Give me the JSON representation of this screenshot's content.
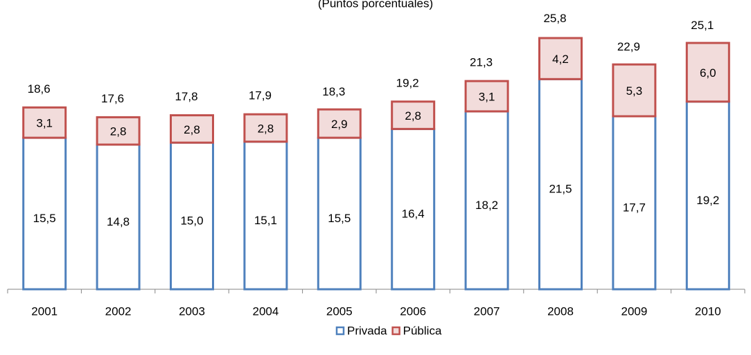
{
  "chart_data": {
    "type": "stacked-bar",
    "subtitle": "(Puntos porcentuales)",
    "categories": [
      "2001",
      "2002",
      "2003",
      "2004",
      "2005",
      "2006",
      "2007",
      "2008",
      "2009",
      "2010"
    ],
    "series": [
      {
        "name": "Privada",
        "color": "#4f81bd",
        "fill": "#ffffff",
        "values": [
          15.5,
          14.8,
          15.0,
          15.1,
          15.5,
          16.4,
          18.2,
          21.5,
          17.7,
          19.2
        ],
        "value_labels": [
          "15,5",
          "14,8",
          "15,0",
          "15,1",
          "15,5",
          "16,4",
          "18,2",
          "21,5",
          "17,7",
          "19,2"
        ]
      },
      {
        "name": "Pública",
        "color": "#c0504d",
        "fill": "#f2dcdb",
        "values": [
          3.1,
          2.8,
          2.8,
          2.8,
          2.9,
          2.8,
          3.1,
          4.2,
          5.3,
          6.0
        ],
        "value_labels": [
          "3,1",
          "2,8",
          "2,8",
          "2,8",
          "2,9",
          "2,8",
          "3,1",
          "4,2",
          "5,3",
          "6,0"
        ]
      }
    ],
    "totals": {
      "values": [
        18.6,
        17.6,
        17.8,
        17.9,
        18.3,
        19.2,
        21.3,
        25.8,
        22.9,
        25.1
      ],
      "value_labels": [
        "18,6",
        "17,6",
        "17,8",
        "17,9",
        "18,3",
        "19,2",
        "21,3",
        "25,8",
        "22,9",
        "25,1"
      ]
    },
    "legend": "bottom"
  }
}
